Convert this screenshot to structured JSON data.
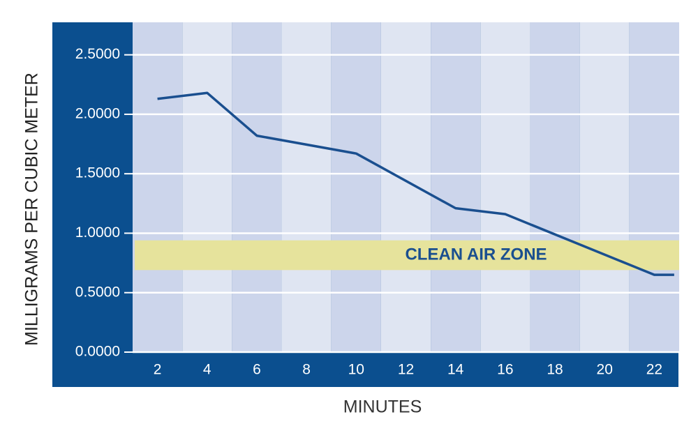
{
  "chart_data": {
    "type": "line",
    "x_label": "MINUTES",
    "y_label": "MILLIGRAMS PER CUBIC METER",
    "x": [
      2,
      4,
      6,
      10,
      14,
      16,
      22,
      22.8
    ],
    "values": [
      2.13,
      2.18,
      1.82,
      1.67,
      1.21,
      1.16,
      0.65,
      0.65
    ],
    "color": "#1a4f8f",
    "xlim": [
      1,
      23
    ],
    "xticks": [
      2,
      4,
      6,
      8,
      10,
      12,
      14,
      16,
      18,
      20,
      22
    ],
    "ylim": [
      0,
      2.75
    ],
    "yticks": [
      {
        "value": 0,
        "label": "0.0000"
      },
      {
        "value": 0.5,
        "label": "0.5000"
      },
      {
        "value": 1,
        "label": "1.0000"
      },
      {
        "value": 1.5,
        "label": "1.5000"
      },
      {
        "value": 2,
        "label": "2.0000"
      },
      {
        "value": 2.5,
        "label": "2.5000"
      }
    ],
    "grid": true,
    "annotations": [
      {
        "text": "CLEAN AIR ZONE",
        "range": [
          0.69,
          0.94
        ]
      }
    ]
  }
}
